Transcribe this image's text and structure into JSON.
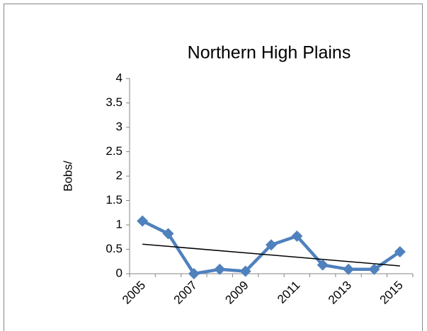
{
  "chart_data": {
    "type": "line",
    "title": "Northern High Plains",
    "y_label": "Bobs/",
    "categories": [
      "2005",
      null,
      "2007",
      null,
      "2009",
      null,
      "2011",
      null,
      "2013",
      null,
      "2015"
    ],
    "series": [
      {
        "name": "Bobs/",
        "color": "#4f81bd",
        "values": [
          1.08,
          0.82,
          0.0,
          0.09,
          0.05,
          0.59,
          0.77,
          0.18,
          0.09,
          0.09,
          0.45
        ]
      }
    ],
    "ylim": [
      0,
      4
    ],
    "yticks": [
      0,
      0.5,
      1,
      1.5,
      2,
      2.5,
      3,
      3.5,
      4
    ],
    "grid": false,
    "trendline": true,
    "legend": false
  }
}
